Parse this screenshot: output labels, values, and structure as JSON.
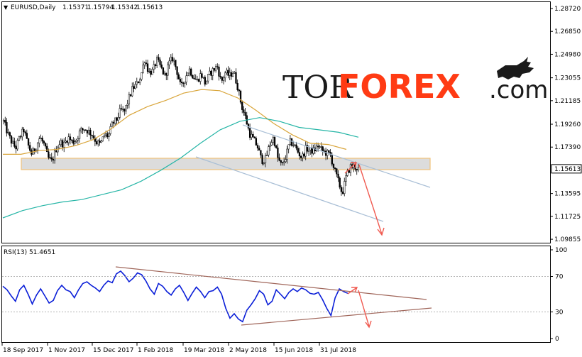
{
  "header": {
    "symbol": "EURUSD,Daily",
    "open": "1.15371",
    "high": "1.15794",
    "low": "1.15342",
    "close": "1.15613"
  },
  "logo": {
    "part1": "TOR",
    "part2": "FOREX",
    "part3": ".com",
    "icon": "bull-icon"
  },
  "colors": {
    "candle": "#000000",
    "ma_fast": "#d9a53a",
    "ma_slow": "#25b5a6",
    "rsi": "#0b1fd8",
    "channel": "#a9bfd6",
    "trendline_rsi": "#a0665a",
    "arrow": "#f05a50",
    "zone_fill": "#dcdcdc",
    "zone_border": "#f1c27a"
  },
  "chart_data": [
    {
      "type": "candlestick",
      "title": "EURUSD,Daily",
      "x_tick_labels": [
        "18 Sep 2017",
        "1 Nov 2017",
        "15 Dec 2017",
        "1 Feb 2018",
        "19 Mar 2018",
        "2 May 2018",
        "15 Jun 2018",
        "31 Jul 2018"
      ],
      "y_tick_labels": [
        "1.28720",
        "1.26850",
        "1.24980",
        "1.23055",
        "1.21185",
        "1.19260",
        "1.17390",
        "1.15613",
        "1.13595",
        "1.11725",
        "1.09855"
      ],
      "ylim": [
        1.0986,
        1.2872
      ],
      "current_price": 1.15613,
      "series": [
        {
          "type": "line",
          "values": [
            1.195,
            1.185,
            1.178,
            1.173,
            1.182,
            1.188,
            1.176,
            1.168,
            1.174,
            1.182,
            1.176,
            1.165,
            1.162,
            1.172,
            1.178,
            1.176,
            1.182,
            1.178,
            1.18,
            1.187,
            1.189,
            1.187,
            1.184,
            1.178,
            1.176,
            1.184,
            1.183,
            1.193,
            1.196,
            1.204,
            1.203,
            1.213,
            1.222,
            1.225,
            1.232,
            1.246,
            1.235,
            1.236,
            1.245,
            1.239,
            1.232,
            1.242,
            1.247,
            1.236,
            1.222,
            1.23,
            1.238,
            1.232,
            1.228,
            1.234,
            1.226,
            1.233,
            1.237,
            1.24,
            1.227,
            1.235,
            1.232,
            1.236,
            1.224,
            1.208,
            1.198,
            1.185,
            1.18,
            1.174,
            1.163,
            1.164,
            1.176,
            1.182,
            1.165,
            1.158,
            1.166,
            1.178,
            1.176,
            1.17,
            1.165,
            1.173,
            1.171,
            1.171,
            1.175,
            1.171,
            1.169,
            1.168,
            1.156,
            1.146,
            1.136,
            1.15,
            1.158,
            1.158,
            1.156
          ]
        },
        {
          "name": "MA fast",
          "type": "line",
          "values": [
            1.168,
            1.168,
            1.171,
            1.172,
            1.175,
            1.18,
            1.189,
            1.2,
            1.207,
            1.212,
            1.218,
            1.221,
            1.22,
            1.214,
            1.204,
            1.193,
            1.184,
            1.177,
            1.176,
            1.172
          ]
        },
        {
          "name": "MA slow",
          "type": "line",
          "values": [
            1.116,
            1.122,
            1.126,
            1.129,
            1.131,
            1.135,
            1.139,
            1.146,
            1.155,
            1.165,
            1.177,
            1.188,
            1.195,
            1.198,
            1.195,
            1.19,
            1.188,
            1.186,
            1.182
          ]
        }
      ],
      "annotations": [
        "support zone",
        "descending channel",
        "forecast arrows"
      ]
    },
    {
      "type": "line",
      "title": "RSI(13) 51.4651",
      "ylim": [
        0,
        100
      ],
      "y_tick_labels": [
        "100",
        "70",
        "30",
        "0"
      ],
      "series": [
        {
          "name": "RSI(13)",
          "values": [
            59,
            55,
            48,
            42,
            55,
            60,
            50,
            39,
            49,
            56,
            48,
            40,
            43,
            54,
            60,
            55,
            53,
            46,
            55,
            62,
            64,
            60,
            57,
            53,
            60,
            65,
            63,
            73,
            76,
            71,
            64,
            68,
            74,
            72,
            65,
            56,
            50,
            62,
            59,
            53,
            49,
            56,
            60,
            52,
            43,
            51,
            58,
            53,
            46,
            53,
            54,
            58,
            50,
            34,
            23,
            28,
            22,
            19,
            32,
            38,
            45,
            54,
            50,
            38,
            42,
            55,
            50,
            45,
            52,
            56,
            53,
            57,
            55,
            51,
            50,
            52,
            44,
            34,
            26,
            46,
            56,
            53,
            51
          ]
        }
      ]
    }
  ]
}
